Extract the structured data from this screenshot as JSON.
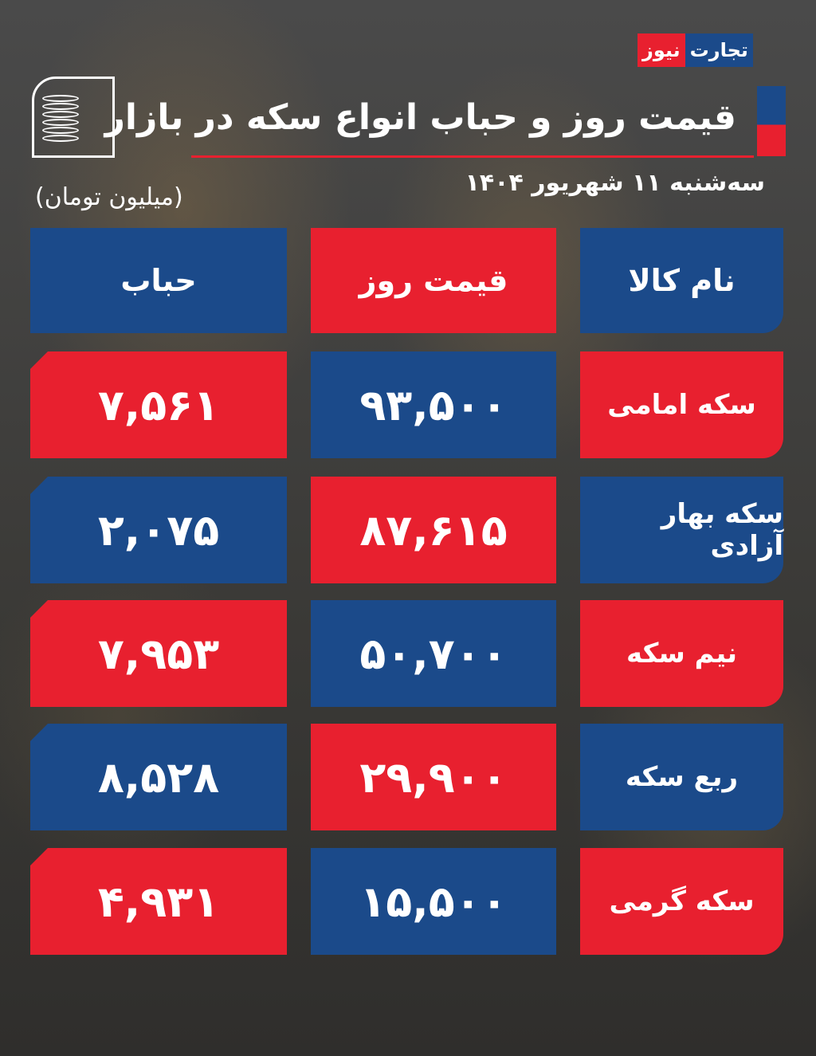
{
  "logo": {
    "part1": "تجارت",
    "part2": "نیوز"
  },
  "title": "قیمت روز و حباب انواع سکه در بازار",
  "date": "سه‌شنبه ۱۱ شهریور ۱۴۰۴",
  "unit": "(میلیون تومان)",
  "colors": {
    "red": "#e8202f",
    "blue": "#1b4a8a"
  },
  "headers": {
    "name": "نام کالا",
    "price": "قیمت روز",
    "bubble": "حباب"
  },
  "rows": [
    {
      "name": "سکه امامی",
      "price": "۹۳,۵۰۰",
      "bubble": "۷,۵۶۱"
    },
    {
      "name": "سکه بهار آزادی",
      "price": "۸۷,۶۱۵",
      "bubble": "۲,۰۷۵"
    },
    {
      "name": "نیم سکه",
      "price": "۵۰,۷۰۰",
      "bubble": "۷,۹۵۳"
    },
    {
      "name": "ربع سکه",
      "price": "۲۹,۹۰۰",
      "bubble": "۸,۵۲۸"
    },
    {
      "name": "سکه گرمی",
      "price": "۱۵,۵۰۰",
      "bubble": "۴,۹۳۱"
    }
  ]
}
